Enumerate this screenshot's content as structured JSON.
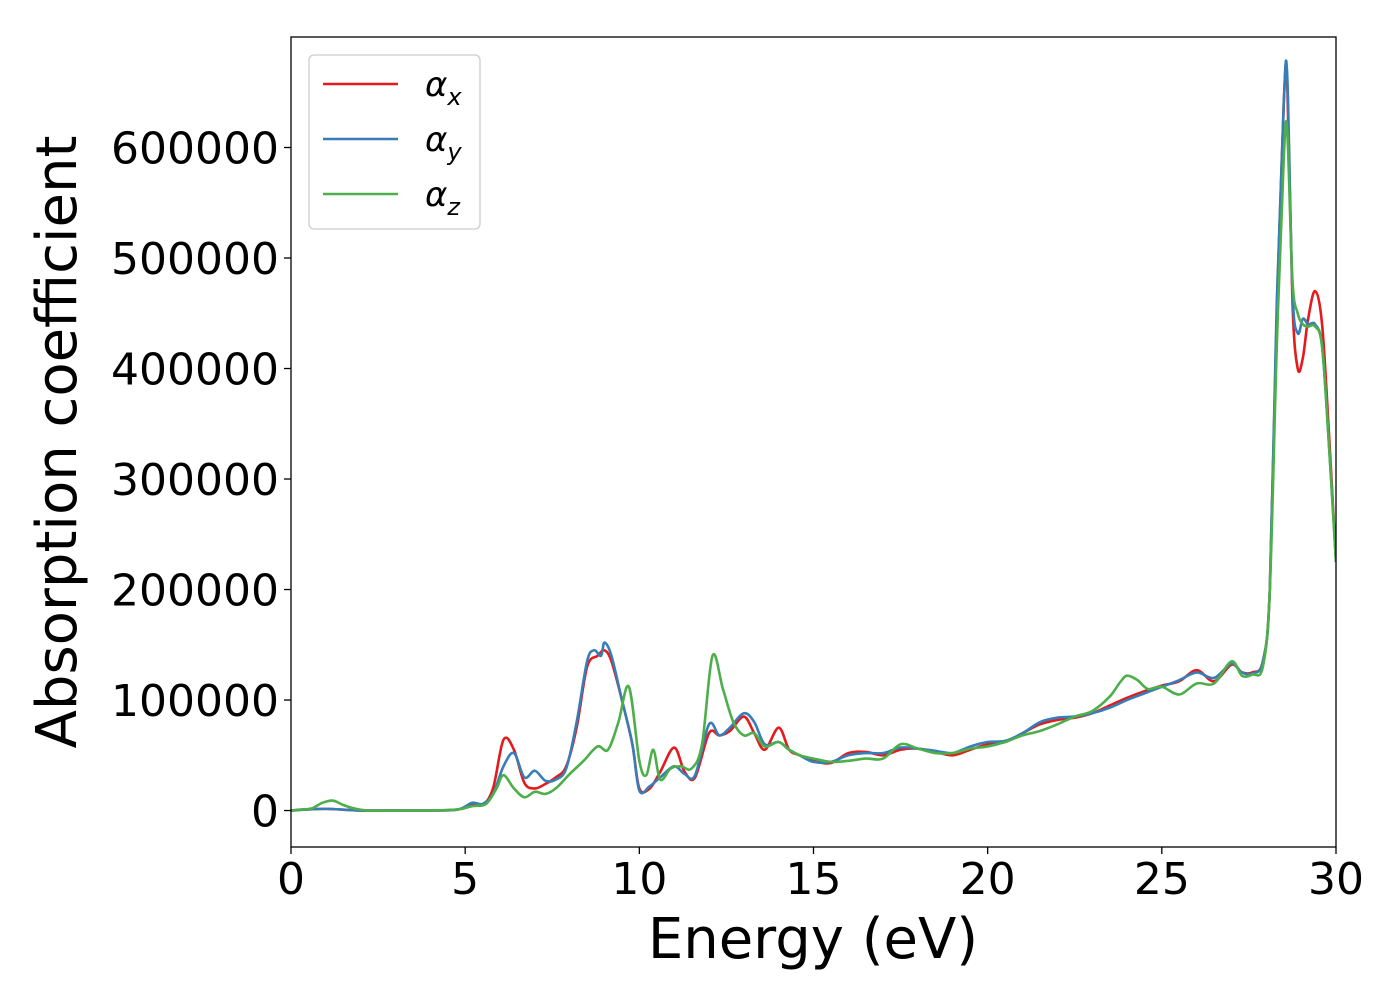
{
  "chart_data": {
    "type": "line",
    "title": "",
    "xlabel": "Energy (eV)",
    "ylabel": "Absorption coefficient",
    "xlim": [
      0,
      30
    ],
    "ylim": [
      -33000,
      700000
    ],
    "xticks": [
      0,
      5,
      10,
      15,
      20,
      25,
      30
    ],
    "yticks": [
      0,
      100000,
      200000,
      300000,
      400000,
      500000,
      600000
    ],
    "xtick_labels": [
      "0",
      "5",
      "10",
      "15",
      "20",
      "25",
      "30"
    ],
    "ytick_labels": [
      "0",
      "100000",
      "200000",
      "300000",
      "400000",
      "500000",
      "600000"
    ],
    "grid": false,
    "legend_position": "top-left",
    "series": [
      {
        "name": "α_x",
        "legend_base": "α",
        "legend_sub": "x",
        "color": "#e41a1c",
        "x": [
          0,
          0.5,
          1,
          1.5,
          2,
          3,
          4,
          4.8,
          5.2,
          5.5,
          5.8,
          6.1,
          6.4,
          6.7,
          7.0,
          7.3,
          7.6,
          7.9,
          8.2,
          8.5,
          8.8,
          9.0,
          9.2,
          9.5,
          9.8,
          10.0,
          10.3,
          10.6,
          11.0,
          11.3,
          11.6,
          12.0,
          12.3,
          12.6,
          13.0,
          13.3,
          13.6,
          14.0,
          14.3,
          14.6,
          15.0,
          15.5,
          16.0,
          16.5,
          17.0,
          17.5,
          18.0,
          18.5,
          19.0,
          19.5,
          20.0,
          20.5,
          21.0,
          21.5,
          22.0,
          22.5,
          23.0,
          23.5,
          24.0,
          24.5,
          25.0,
          25.5,
          26.0,
          26.5,
          27.0,
          27.3,
          27.6,
          27.9,
          28.1,
          28.3,
          28.5,
          28.6,
          28.75,
          28.9,
          29.05,
          29.2,
          29.4,
          29.6,
          29.8,
          30.0
        ],
        "y": [
          0,
          1000,
          1500,
          800,
          0,
          0,
          0,
          1000,
          6000,
          5000,
          20000,
          64000,
          55000,
          25000,
          20000,
          24000,
          30000,
          40000,
          75000,
          130000,
          140000,
          145000,
          135000,
          100000,
          60000,
          20000,
          20000,
          35000,
          57000,
          35000,
          30000,
          70000,
          68000,
          72000,
          85000,
          70000,
          55000,
          75000,
          55000,
          50000,
          45000,
          43000,
          52000,
          53000,
          50000,
          55000,
          56000,
          53000,
          50000,
          55000,
          60000,
          62000,
          70000,
          78000,
          82000,
          84000,
          88000,
          95000,
          102000,
          108000,
          113000,
          117000,
          127000,
          117000,
          132000,
          125000,
          125000,
          135000,
          200000,
          450000,
          640000,
          660000,
          460000,
          400000,
          410000,
          445000,
          470000,
          440000,
          340000,
          225000
        ]
      },
      {
        "name": "α_y",
        "legend_base": "α",
        "legend_sub": "y",
        "color": "#377eb8",
        "x": [
          0,
          0.5,
          1,
          1.5,
          2,
          3,
          4,
          4.8,
          5.2,
          5.5,
          5.8,
          6.1,
          6.4,
          6.7,
          7.0,
          7.3,
          7.6,
          7.9,
          8.2,
          8.5,
          8.7,
          8.9,
          9.0,
          9.2,
          9.5,
          9.8,
          10.0,
          10.3,
          10.6,
          11.0,
          11.3,
          11.6,
          12.0,
          12.3,
          12.6,
          13.0,
          13.3,
          13.6,
          14.0,
          14.3,
          14.6,
          15.0,
          15.5,
          16.0,
          16.5,
          17.0,
          17.5,
          18.0,
          18.5,
          19.0,
          19.5,
          20.0,
          20.5,
          21.0,
          21.5,
          22.0,
          22.5,
          23.0,
          23.5,
          24.0,
          24.5,
          25.0,
          25.5,
          26.0,
          26.5,
          27.0,
          27.3,
          27.6,
          27.9,
          28.1,
          28.3,
          28.5,
          28.6,
          28.75,
          28.9,
          29.05,
          29.2,
          29.4,
          29.6,
          29.8,
          30.0
        ],
        "y": [
          0,
          1000,
          1500,
          800,
          0,
          0,
          0,
          1000,
          7000,
          6000,
          15000,
          40000,
          52000,
          30000,
          36000,
          27000,
          28000,
          38000,
          80000,
          135000,
          145000,
          140000,
          152000,
          140000,
          100000,
          60000,
          18000,
          22000,
          30000,
          40000,
          33000,
          32000,
          78000,
          68000,
          75000,
          88000,
          80000,
          60000,
          62000,
          55000,
          50000,
          44000,
          44000,
          50000,
          52000,
          52000,
          57000,
          56000,
          54000,
          52000,
          58000,
          62000,
          63000,
          70000,
          80000,
          84000,
          85000,
          88000,
          93000,
          100000,
          106000,
          112000,
          118000,
          125000,
          120000,
          133000,
          125000,
          124000,
          135000,
          200000,
          460000,
          640000,
          665000,
          470000,
          432000,
          445000,
          440000,
          440000,
          420000,
          330000,
          225000
        ]
      },
      {
        "name": "α_z",
        "legend_base": "α",
        "legend_sub": "z",
        "color": "#4daf4a",
        "x": [
          0,
          0.3,
          0.6,
          0.9,
          1.2,
          1.5,
          1.8,
          2.2,
          3,
          4,
          4.8,
          5.2,
          5.6,
          5.9,
          6.1,
          6.4,
          6.7,
          7.0,
          7.3,
          7.6,
          8.0,
          8.4,
          8.8,
          9.1,
          9.4,
          9.7,
          10.0,
          10.2,
          10.4,
          10.6,
          10.9,
          11.2,
          11.5,
          11.8,
          12.1,
          12.4,
          12.7,
          13.0,
          13.3,
          13.6,
          14.0,
          14.3,
          14.6,
          15.0,
          15.5,
          16.0,
          16.5,
          17.0,
          17.5,
          18.0,
          18.5,
          19.0,
          19.5,
          20.0,
          20.5,
          21.0,
          21.5,
          22.0,
          22.5,
          23.0,
          23.5,
          23.8,
          24.0,
          24.3,
          24.6,
          25.0,
          25.5,
          26.0,
          26.5,
          27.0,
          27.3,
          27.6,
          27.9,
          28.1,
          28.3,
          28.5,
          28.6,
          28.75,
          28.9,
          29.05,
          29.2,
          29.4,
          29.6,
          29.8,
          30.0
        ],
        "y": [
          0,
          1000,
          2000,
          7000,
          9000,
          5000,
          2000,
          0,
          0,
          0,
          1000,
          4000,
          6000,
          20000,
          32000,
          20000,
          12000,
          17000,
          15000,
          20000,
          33000,
          45000,
          58000,
          55000,
          80000,
          112000,
          45000,
          32000,
          55000,
          28000,
          38000,
          40000,
          38000,
          60000,
          140000,
          110000,
          80000,
          68000,
          70000,
          58000,
          62000,
          55000,
          50000,
          47000,
          44000,
          45000,
          47000,
          47000,
          60000,
          56000,
          52000,
          52000,
          56000,
          58000,
          62000,
          68000,
          72000,
          78000,
          85000,
          90000,
          103000,
          116000,
          122000,
          118000,
          110000,
          112000,
          105000,
          115000,
          115000,
          135000,
          122000,
          123000,
          130000,
          200000,
          420000,
          590000,
          615000,
          480000,
          450000,
          440000,
          438000,
          438000,
          420000,
          330000,
          225000
        ]
      }
    ]
  }
}
